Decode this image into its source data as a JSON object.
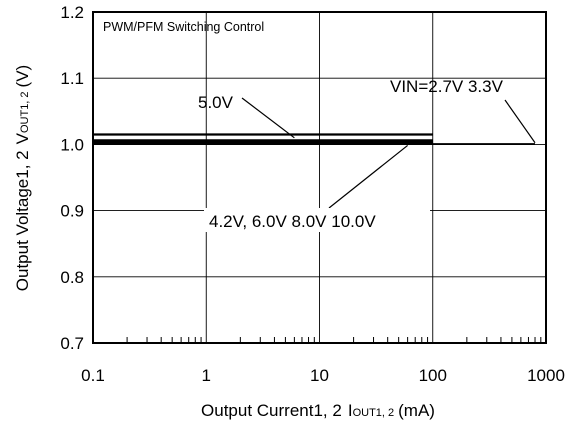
{
  "chart_data": {
    "type": "line",
    "title": "PWM/PFM Switching Control",
    "xlabel": {
      "main": "Output Current1, 2",
      "sym": "I",
      "sub": "OUT1, 2",
      "unit": "(mA)"
    },
    "ylabel": {
      "main": "Output Voltage1, 2",
      "sym": "V",
      "sub": "OUT1, 2",
      "unit": "(V)"
    },
    "xscale": "log",
    "xlim": [
      0.1,
      1000
    ],
    "ylim": [
      0.7,
      1.2
    ],
    "xticks": [
      0.1,
      1,
      10,
      100,
      1000
    ],
    "xtick_labels": [
      "0.1",
      "1",
      "10",
      "100",
      "1000"
    ],
    "yticks": [
      0.7,
      0.8,
      0.9,
      1.0,
      1.1,
      1.2
    ],
    "ytick_labels": [
      "0.7",
      "0.8",
      "0.9",
      "1.0",
      "1.1",
      "1.2"
    ],
    "grid": true,
    "series": [
      {
        "x": [
          0.1,
          100
        ],
        "y": [
          1.015,
          1.015
        ]
      },
      {
        "x": [
          0.1,
          100
        ],
        "y": [
          1.006,
          1.006
        ]
      },
      {
        "x": [
          0.1,
          100
        ],
        "y": [
          1.004,
          1.004
        ]
      },
      {
        "x": [
          0.1,
          100
        ],
        "y": [
          1.003,
          1.003
        ]
      },
      {
        "x": [
          0.1,
          100
        ],
        "y": [
          1.002,
          1.002
        ]
      },
      {
        "x": [
          0.1,
          800
        ],
        "y": [
          1.001,
          1.001
        ]
      },
      {
        "x": [
          0.1,
          800
        ],
        "y": [
          1.0,
          1.0
        ]
      }
    ],
    "annotations": [
      {
        "label": "5.0V",
        "x": 6,
        "y": 1.016
      },
      {
        "label": "VIN=2.7V  3.3V",
        "x": 800,
        "y": 1.001
      },
      {
        "label": "4.2V, 6.0V 8.0V 10.0V",
        "x": 60,
        "y": 1.003
      }
    ]
  }
}
